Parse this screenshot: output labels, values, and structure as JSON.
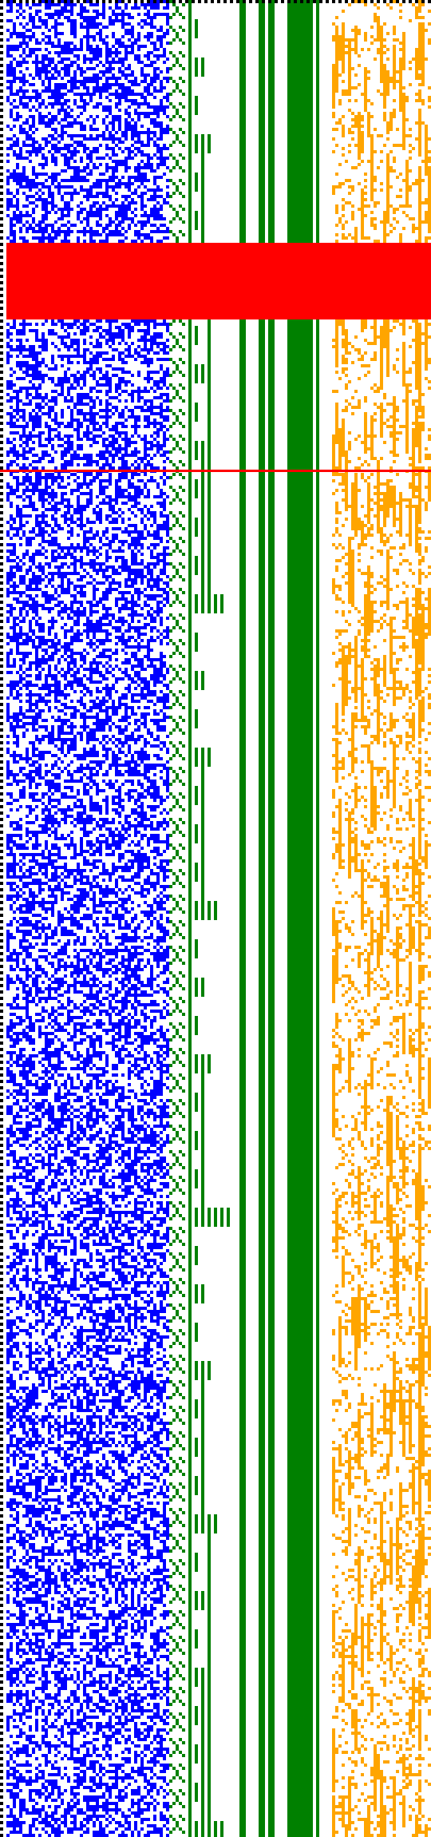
{
  "colors": {
    "background": "#ffffff",
    "blue_field": "#0000ff",
    "green_structure": "#008000",
    "orange_field": "#ffa500",
    "red_highlight": "#ff0000",
    "dotted_border": "#000000"
  },
  "grid": {
    "columns": 135,
    "rows": 575
  },
  "bands": [
    {
      "name": "blue-noise",
      "col_start": 2,
      "col_end": 53,
      "density": 0.5
    },
    {
      "name": "green-structure",
      "col_start": 53,
      "col_end": 104
    },
    {
      "name": "orange-noise",
      "col_start": 104,
      "col_end": 135,
      "density": 0.35
    }
  ],
  "green_solid_columns": [
    {
      "col_start": 75,
      "col_end": 77
    },
    {
      "col_start": 81,
      "col_end": 83
    },
    {
      "col_start": 84,
      "col_end": 86
    },
    {
      "col_start": 90,
      "col_end": 98
    },
    {
      "col_start": 99,
      "col_end": 100
    }
  ],
  "highlights": {
    "red_block_rows": [
      76,
      100
    ],
    "red_line_row": 147
  }
}
